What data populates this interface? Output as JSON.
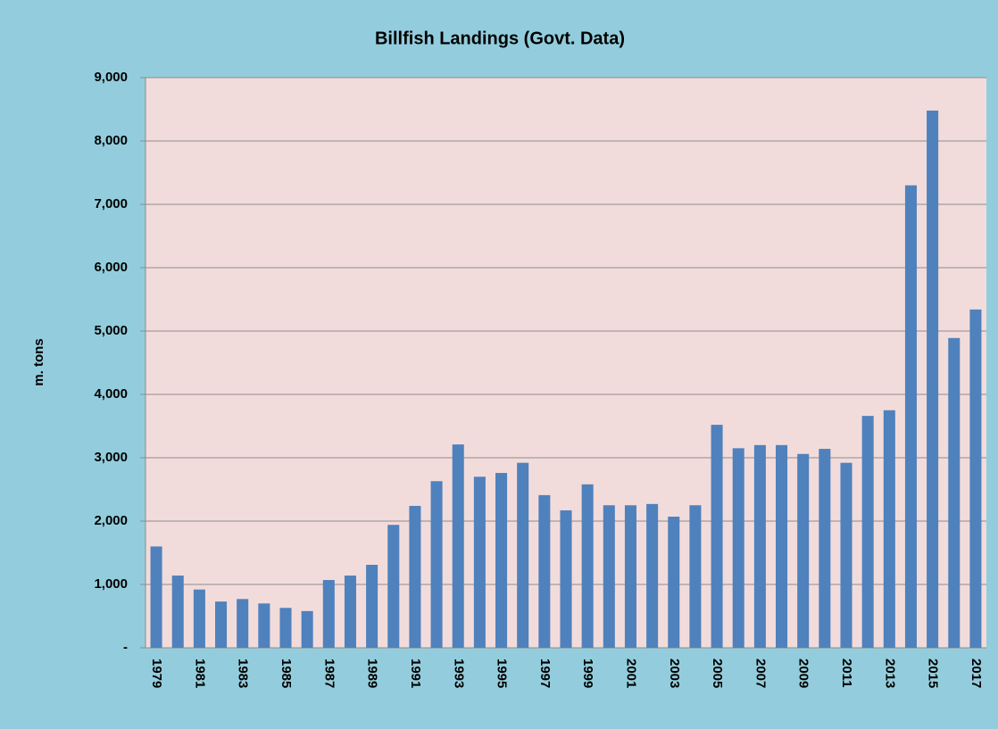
{
  "chart_data": {
    "type": "bar",
    "title": "Billfish Landings (Govt. Data)",
    "y_label": "m. tons",
    "categories": [
      "1979",
      null,
      "1981",
      null,
      "1983",
      null,
      "1985",
      null,
      "1987",
      null,
      "1989",
      null,
      "1991",
      null,
      "1993",
      null,
      "1995",
      null,
      "1997",
      null,
      "1999",
      null,
      "2001",
      null,
      "2003",
      null,
      "2005",
      null,
      "2007",
      null,
      "2009",
      null,
      "2011",
      null,
      "2013",
      null,
      "2015",
      null,
      "2017"
    ],
    "values": [
      1600,
      1140,
      920,
      730,
      770,
      700,
      630,
      580,
      1070,
      1140,
      1310,
      1940,
      2240,
      2630,
      3210,
      2700,
      2760,
      2920,
      2410,
      2170,
      2580,
      2250,
      2250,
      2270,
      2070,
      2250,
      3520,
      3150,
      3200,
      3200,
      3060,
      3140,
      2920,
      3660,
      3750,
      7300,
      8480,
      4890,
      5340
    ],
    "color": "#4f81bd",
    "ylim": [
      0,
      9000
    ],
    "yticks": [
      {
        "value": 0,
        "label": "-"
      },
      {
        "value": 1000,
        "label": "1,000"
      },
      {
        "value": 2000,
        "label": "2,000"
      },
      {
        "value": 3000,
        "label": "3,000"
      },
      {
        "value": 4000,
        "label": "4,000"
      },
      {
        "value": 5000,
        "label": "5,000"
      },
      {
        "value": 6000,
        "label": "6,000"
      },
      {
        "value": 7000,
        "label": "7,000"
      },
      {
        "value": 8000,
        "label": "8,000"
      },
      {
        "value": 9000,
        "label": "9,000"
      }
    ],
    "grid": true
  }
}
